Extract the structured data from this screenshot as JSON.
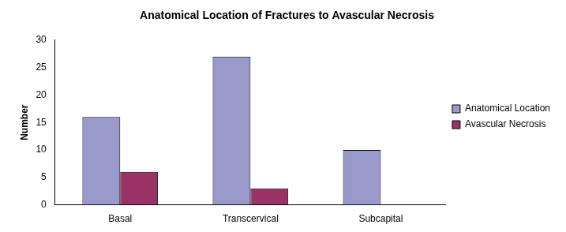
{
  "chart_data": {
    "type": "bar",
    "title": "Anatomical Location of Fractures to Avascular Necrosis",
    "y_label": "Number",
    "categories": [
      "Basal",
      "Transcervical",
      "Subcapital"
    ],
    "series": [
      {
        "name": "Anatomical Location",
        "color": "#9999cc",
        "values": [
          16,
          27,
          10
        ]
      },
      {
        "name": "Avascular Necrosis",
        "color": "#993366",
        "values": [
          6,
          3,
          0
        ]
      }
    ],
    "ylim": [
      0,
      30
    ],
    "yticks": [
      0,
      5,
      10,
      15,
      20,
      25,
      30
    ],
    "grid": false,
    "legend": "right"
  }
}
